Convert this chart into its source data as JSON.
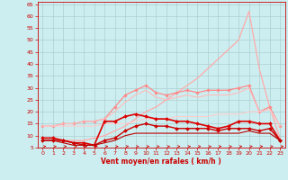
{
  "xlabel": "Vent moyen/en rafales ( km/h )",
  "xlim": [
    -0.5,
    23.5
  ],
  "ylim": [
    5,
    66
  ],
  "yticks": [
    5,
    10,
    15,
    20,
    25,
    30,
    35,
    40,
    45,
    50,
    55,
    60,
    65
  ],
  "xticks": [
    0,
    1,
    2,
    3,
    4,
    5,
    6,
    7,
    8,
    9,
    10,
    11,
    12,
    13,
    14,
    15,
    16,
    17,
    18,
    19,
    20,
    21,
    22,
    23
  ],
  "bg_color": "#cceef0",
  "grid_color": "#aacccc",
  "series": [
    {
      "x": [
        0,
        1,
        2,
        3,
        4,
        5,
        6,
        7,
        8,
        9,
        10,
        11,
        12,
        13,
        14,
        15,
        16,
        17,
        18,
        19,
        20,
        21,
        22,
        23
      ],
      "y": [
        9,
        9,
        8,
        8,
        8,
        9,
        10,
        12,
        14,
        17,
        20,
        22,
        25,
        28,
        31,
        34,
        38,
        42,
        46,
        50,
        62,
        38,
        22,
        9
      ],
      "color": "#ffaaaa",
      "lw": 0.9,
      "marker": null,
      "ms": 0
    },
    {
      "x": [
        0,
        1,
        2,
        3,
        4,
        5,
        6,
        7,
        8,
        9,
        10,
        11,
        12,
        13,
        14,
        15,
        16,
        17,
        18,
        19,
        20,
        21,
        22,
        23
      ],
      "y": [
        14,
        14,
        15,
        15,
        16,
        16,
        17,
        22,
        27,
        29,
        31,
        28,
        27,
        28,
        29,
        28,
        29,
        29,
        29,
        30,
        31,
        20,
        22,
        14
      ],
      "color": "#ff8888",
      "lw": 0.9,
      "marker": "D",
      "ms": 1.8
    },
    {
      "x": [
        0,
        1,
        2,
        3,
        4,
        5,
        6,
        7,
        8,
        9,
        10,
        11,
        12,
        13,
        14,
        15,
        16,
        17,
        18,
        19,
        20,
        21,
        22,
        23
      ],
      "y": [
        14,
        14,
        15,
        15,
        16,
        16,
        17,
        20,
        24,
        27,
        29,
        26,
        25,
        26,
        27,
        26,
        27,
        27,
        27,
        28,
        30,
        20,
        21,
        14
      ],
      "color": "#ffbbbb",
      "lw": 0.8,
      "marker": null,
      "ms": 0
    },
    {
      "x": [
        0,
        1,
        2,
        3,
        4,
        5,
        6,
        7,
        8,
        9,
        10,
        11,
        12,
        13,
        14,
        15,
        16,
        17,
        18,
        19,
        20,
        21,
        22,
        23
      ],
      "y": [
        14,
        14,
        14,
        14,
        14,
        14,
        15,
        15,
        15,
        16,
        17,
        17,
        17,
        18,
        18,
        18,
        18,
        19,
        19,
        19,
        20,
        20,
        21,
        14
      ],
      "color": "#ffcccc",
      "lw": 0.8,
      "marker": null,
      "ms": 0
    },
    {
      "x": [
        0,
        1,
        2,
        3,
        4,
        5,
        6,
        7,
        8,
        9,
        10,
        11,
        12,
        13,
        14,
        15,
        16,
        17,
        18,
        19,
        20,
        21,
        22,
        23
      ],
      "y": [
        9,
        9,
        8,
        7,
        7,
        6,
        16,
        16,
        18,
        19,
        18,
        17,
        17,
        16,
        16,
        15,
        14,
        13,
        14,
        16,
        16,
        15,
        15,
        8
      ],
      "color": "#dd0000",
      "lw": 1.2,
      "marker": "D",
      "ms": 2
    },
    {
      "x": [
        0,
        1,
        2,
        3,
        4,
        5,
        6,
        7,
        8,
        9,
        10,
        11,
        12,
        13,
        14,
        15,
        16,
        17,
        18,
        19,
        20,
        21,
        22,
        23
      ],
      "y": [
        8,
        8,
        8,
        7,
        6,
        6,
        8,
        9,
        12,
        14,
        15,
        14,
        14,
        13,
        13,
        13,
        13,
        12,
        13,
        13,
        13,
        12,
        13,
        8
      ],
      "color": "#cc0000",
      "lw": 1.0,
      "marker": "D",
      "ms": 2
    },
    {
      "x": [
        0,
        1,
        2,
        3,
        4,
        5,
        6,
        7,
        8,
        9,
        10,
        11,
        12,
        13,
        14,
        15,
        16,
        17,
        18,
        19,
        20,
        21,
        22,
        23
      ],
      "y": [
        8,
        8,
        7,
        6,
        6,
        6,
        7,
        8,
        10,
        11,
        11,
        11,
        11,
        11,
        11,
        11,
        11,
        11,
        11,
        11,
        12,
        11,
        11,
        8
      ],
      "color": "#bb0000",
      "lw": 0.8,
      "marker": null,
      "ms": 0
    },
    {
      "x": [
        0,
        1,
        2,
        3,
        4,
        5,
        6,
        7,
        8,
        9,
        10,
        11,
        12,
        13,
        14,
        15,
        16,
        17,
        18,
        19,
        20,
        21,
        22,
        23
      ],
      "y": [
        5.5,
        5.5,
        5.5,
        5.5,
        5.5,
        5.5,
        5.5,
        5.5,
        5.5,
        5.5,
        5.5,
        5.5,
        5.5,
        5.5,
        5.5,
        5.5,
        5.5,
        5.5,
        5.5,
        5.5,
        5.5,
        5.5,
        5.5,
        5.5
      ],
      "color": "#cc0000",
      "lw": 0.5,
      "marker": null,
      "ms": 0,
      "arrows": true
    }
  ]
}
